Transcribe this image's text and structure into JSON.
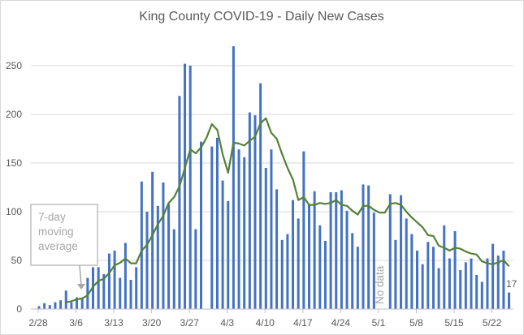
{
  "chart_data": {
    "type": "bar",
    "title": "King County COVID-19 - Daily New Cases",
    "xlabel": "",
    "ylabel": "",
    "ylim": [
      0,
      270
    ],
    "yticks": [
      0,
      50,
      100,
      150,
      200,
      250
    ],
    "grid": true,
    "start_date": "2/28",
    "xtick_labels": [
      "2/28",
      "3/6",
      "3/13",
      "3/20",
      "3/27",
      "4/3",
      "4/10",
      "4/17",
      "4/24",
      "5/1",
      "5/8",
      "5/15",
      "5/22"
    ],
    "series": [
      {
        "name": "Daily new cases",
        "type": "bar",
        "color": "#4472C4",
        "values": [
          3,
          6,
          4,
          7,
          9,
          19,
          7,
          12,
          11,
          32,
          43,
          43,
          36,
          57,
          60,
          32,
          68,
          30,
          43,
          131,
          100,
          141,
          106,
          130,
          108,
          82,
          219,
          252,
          250,
          82,
          172,
          null,
          167,
          176,
          132,
          111,
          270,
          164,
          156,
          202,
          199,
          232,
          145,
          164,
          123,
          71,
          77,
          112,
          93,
          162,
          108,
          121,
          86,
          70,
          120,
          120,
          122,
          101,
          78,
          64,
          128,
          127,
          99,
          null,
          null,
          118,
          71,
          117,
          93,
          77,
          60,
          46,
          69,
          64,
          42,
          86,
          52,
          80,
          40,
          48,
          52,
          35,
          28,
          52,
          67,
          55,
          60,
          17
        ]
      },
      {
        "name": "7-day moving average",
        "type": "line",
        "color": "#548235",
        "values": [
          null,
          null,
          null,
          null,
          null,
          7,
          8,
          10,
          11,
          14,
          23,
          29,
          31,
          37,
          45,
          47.5,
          52,
          47,
          47,
          60,
          66,
          76,
          87,
          96,
          109,
          115,
          126,
          145,
          164,
          160,
          166,
          176,
          190,
          184,
          159,
          140,
          171,
          170,
          168,
          173,
          177,
          191,
          196,
          181,
          175,
          159,
          145,
          133,
          112,
          115,
          107,
          107,
          109,
          108,
          109,
          112,
          107,
          106,
          101,
          97,
          106,
          106,
          102,
          99,
          99,
          108,
          109,
          107,
          100,
          94,
          89,
          84,
          76,
          75,
          65,
          63,
          60,
          63,
          62,
          59,
          57,
          56,
          49,
          47,
          46,
          48,
          50,
          44
        ]
      }
    ],
    "annotations": {
      "moving_average_label": [
        "7-day",
        "moving",
        "average"
      ],
      "no_data_label": "No data",
      "last_value_label": "17"
    }
  }
}
